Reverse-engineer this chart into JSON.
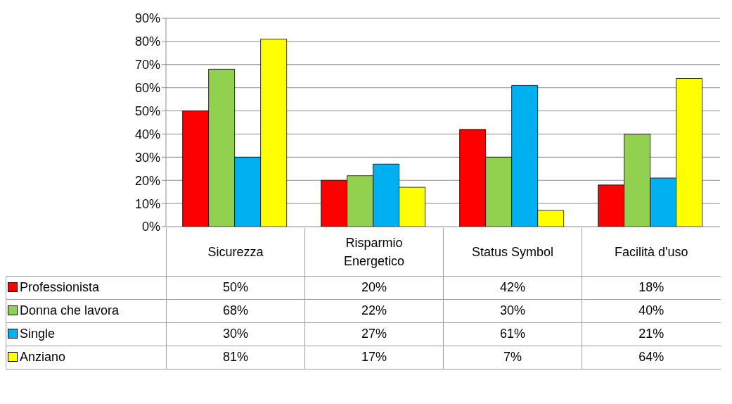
{
  "chart_data": {
    "type": "bar",
    "categories": [
      "Sicurezza",
      "Risparmio Energetico",
      "Status Symbol",
      "Facilità d'uso"
    ],
    "series": [
      {
        "name": "Professionista",
        "color": "#ff0000",
        "values": [
          50,
          20,
          42,
          18
        ],
        "value_labels": [
          "50%",
          "20%",
          "42%",
          "18%"
        ]
      },
      {
        "name": "Donna che lavora",
        "color": "#92d050",
        "values": [
          68,
          22,
          30,
          40
        ],
        "value_labels": [
          "68%",
          "22%",
          "30%",
          "40%"
        ]
      },
      {
        "name": "Single",
        "color": "#00b0f0",
        "values": [
          30,
          27,
          61,
          21
        ],
        "value_labels": [
          "30%",
          "27%",
          "61%",
          "21%"
        ]
      },
      {
        "name": "Anziano",
        "color": "#ffff00",
        "values": [
          81,
          17,
          7,
          64
        ],
        "value_labels": [
          "81%",
          "17%",
          "7%",
          "64%"
        ]
      }
    ],
    "ylim": [
      0,
      90
    ],
    "yticks": [
      {
        "value": 0,
        "label": "0%"
      },
      {
        "value": 10,
        "label": "10%"
      },
      {
        "value": 20,
        "label": "20%"
      },
      {
        "value": 30,
        "label": "30%"
      },
      {
        "value": 40,
        "label": "40%"
      },
      {
        "value": 50,
        "label": "50%"
      },
      {
        "value": 60,
        "label": "60%"
      },
      {
        "value": 70,
        "label": "70%"
      },
      {
        "value": 80,
        "label": "80%"
      },
      {
        "value": 90,
        "label": "90%"
      }
    ],
    "grid": "y",
    "legend": "bottom"
  }
}
